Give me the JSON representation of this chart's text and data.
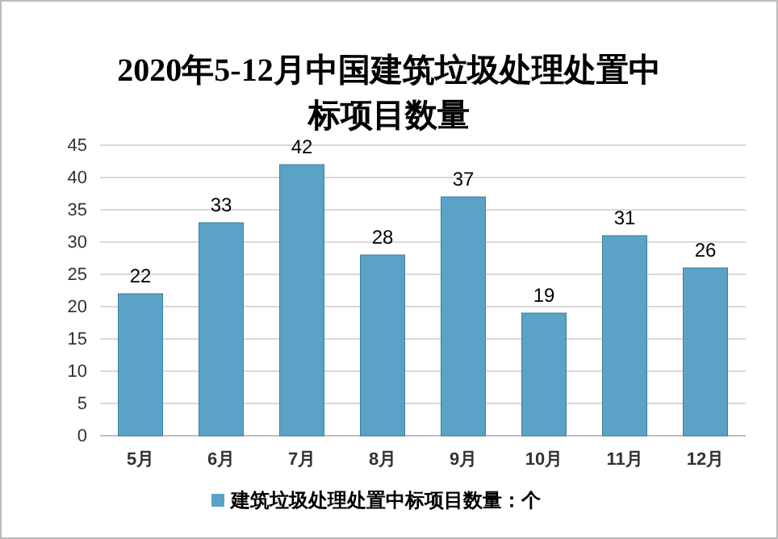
{
  "chart_data": {
    "type": "bar",
    "title": "2020年5-12月中国建筑垃圾处理处置中标项目数量",
    "categories": [
      "5月",
      "6月",
      "7月",
      "8月",
      "9月",
      "10月",
      "11月",
      "12月"
    ],
    "series": [
      {
        "name": "建筑垃圾处理处置中标项目数量：个",
        "color": "#5aa2c6",
        "values": [
          22,
          33,
          42,
          28,
          37,
          19,
          31,
          26
        ]
      }
    ],
    "ylim": [
      0,
      45
    ],
    "yticks": [
      0,
      5,
      10,
      15,
      20,
      25,
      30,
      35,
      40,
      45
    ],
    "grid": "y",
    "data_labels": true,
    "legend": "bottom"
  }
}
